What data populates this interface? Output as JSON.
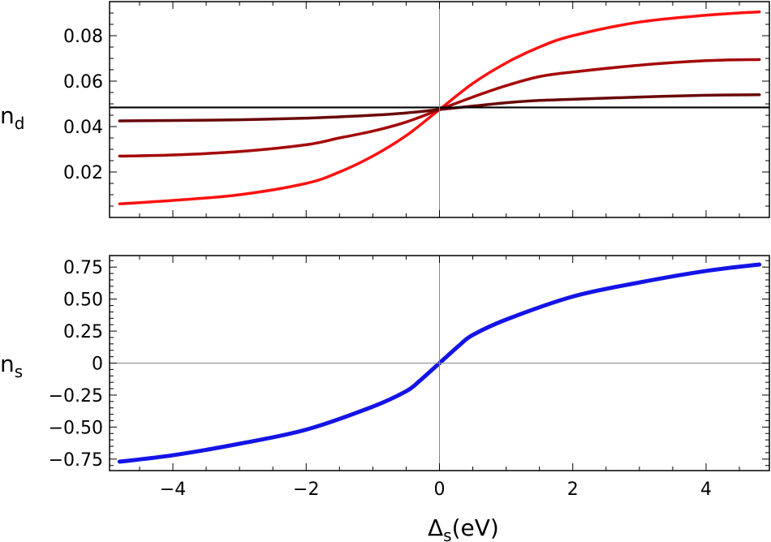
{
  "chart_data": [
    {
      "type": "line",
      "ylabel_main": "n",
      "ylabel_sub": "d",
      "xlim": [
        -4.95,
        4.95
      ],
      "ylim": [
        0,
        0.095
      ],
      "xticks": [
        -4,
        -2,
        0,
        2,
        4
      ],
      "yticks": [
        0.02,
        0.04,
        0.06,
        0.08
      ],
      "ytick_labels": [
        "0.02",
        "0.04",
        "0.06",
        "0.08"
      ],
      "grid": false,
      "reference_lines": [
        0.0485,
        0.0483
      ],
      "series": [
        {
          "color": "#ff1010",
          "x": [
            -4.8,
            -4,
            -3,
            -2,
            -1.5,
            -1,
            -0.5,
            0,
            0.5,
            1,
            1.5,
            2,
            3,
            4,
            4.8
          ],
          "y": [
            0.006,
            0.0075,
            0.01,
            0.015,
            0.02,
            0.027,
            0.036,
            0.0475,
            0.059,
            0.068,
            0.075,
            0.08,
            0.086,
            0.089,
            0.0905
          ]
        },
        {
          "color": "#a50808",
          "x": [
            -4.8,
            -4,
            -3,
            -2,
            -1.5,
            -1,
            -0.5,
            0,
            0.5,
            1,
            1.5,
            2,
            3,
            4,
            4.8
          ],
          "y": [
            0.027,
            0.0275,
            0.029,
            0.032,
            0.035,
            0.038,
            0.042,
            0.0475,
            0.053,
            0.058,
            0.062,
            0.064,
            0.067,
            0.069,
            0.0695
          ]
        },
        {
          "color": "#6a0707",
          "x": [
            -4.8,
            -4,
            -3,
            -2,
            -1.5,
            -1,
            -0.5,
            0,
            0.5,
            1,
            1.5,
            2,
            3,
            4,
            4.8
          ],
          "y": [
            0.0425,
            0.0427,
            0.043,
            0.0437,
            0.0443,
            0.045,
            0.046,
            0.0475,
            0.049,
            0.0505,
            0.0515,
            0.052,
            0.053,
            0.0538,
            0.054
          ]
        }
      ]
    },
    {
      "type": "line",
      "ylabel_main": "n",
      "ylabel_sub": "s",
      "xlabel_main": "Δ",
      "xlabel_sub": "s",
      "xlabel_unit": "(eV)",
      "xlim": [
        -4.95,
        4.95
      ],
      "ylim": [
        -0.84,
        0.84
      ],
      "xticks": [
        -4,
        -2,
        0,
        2,
        4
      ],
      "xtick_labels": [
        "−4",
        "−2",
        "0",
        "2",
        "4"
      ],
      "yticks": [
        -0.75,
        -0.5,
        -0.25,
        0,
        0.25,
        0.5,
        0.75
      ],
      "ytick_labels": [
        "−0.75",
        "−0.50",
        "−0.25",
        "0",
        "0.25",
        "0.50",
        "0.75"
      ],
      "grid": false,
      "series": [
        {
          "color": "#1414e6",
          "x": [
            -4.8,
            -4,
            -3,
            -2,
            -1,
            -0.5,
            -0.3,
            0,
            0.3,
            0.5,
            1,
            2,
            3,
            4,
            4.8
          ],
          "y": [
            -0.77,
            -0.72,
            -0.63,
            -0.52,
            -0.34,
            -0.22,
            -0.14,
            0,
            0.14,
            0.22,
            0.34,
            0.52,
            0.63,
            0.72,
            0.77
          ]
        }
      ]
    }
  ]
}
